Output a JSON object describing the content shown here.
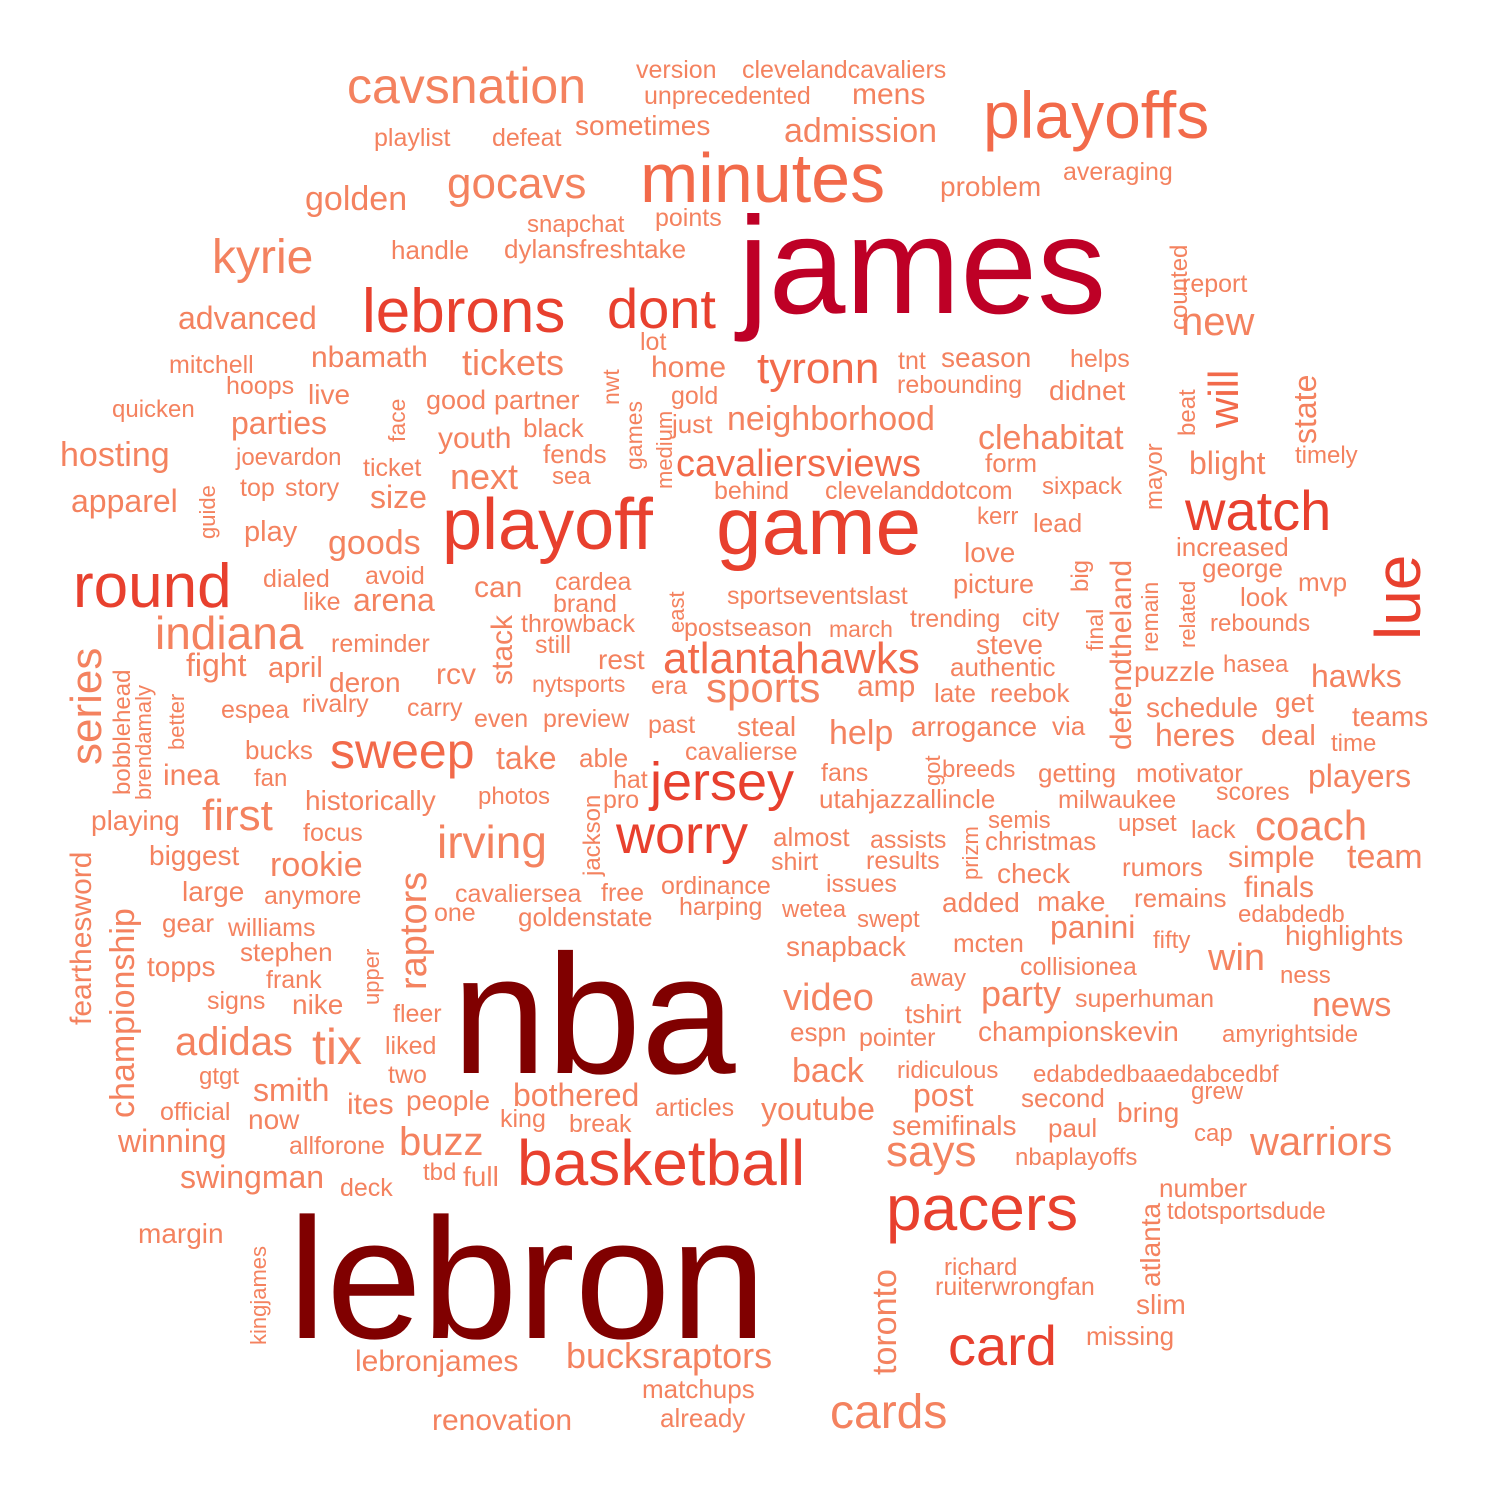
{
  "colors": {
    "tier1": "#800000",
    "tier2": "#BE0026",
    "tier3": "#E8402E",
    "tier4": "#F26A4A",
    "tier5": "#F4825F"
  },
  "words": [
    {
      "text": "james",
      "tier": 2
    },
    {
      "text": "nba",
      "tier": 1
    },
    {
      "text": "lebron",
      "tier": 1
    },
    {
      "text": "minutes",
      "tier": 4
    },
    {
      "text": "playoffs",
      "tier": 4
    },
    {
      "text": "cavsnation",
      "tier": 5
    },
    {
      "text": "version",
      "tier": 5
    },
    {
      "text": "clevelandcavaliers",
      "tier": 5
    },
    {
      "text": "unprecedented",
      "tier": 5
    },
    {
      "text": "mens",
      "tier": 5
    },
    {
      "text": "playlist",
      "tier": 5
    },
    {
      "text": "defeat",
      "tier": 5
    },
    {
      "text": "sometimes",
      "tier": 5
    },
    {
      "text": "admission",
      "tier": 5
    },
    {
      "text": "gocavs",
      "tier": 5
    },
    {
      "text": "golden",
      "tier": 5
    },
    {
      "text": "problem",
      "tier": 5
    },
    {
      "text": "averaging",
      "tier": 5
    },
    {
      "text": "snapchat",
      "tier": 5
    },
    {
      "text": "points",
      "tier": 5
    },
    {
      "text": "kyrie",
      "tier": 5
    },
    {
      "text": "handle",
      "tier": 5
    },
    {
      "text": "dylansfreshtake",
      "tier": 5
    },
    {
      "text": "lebrons",
      "tier": 3
    },
    {
      "text": "dont",
      "tier": 3
    },
    {
      "text": "counted",
      "tier": 5
    },
    {
      "text": "report",
      "tier": 5
    },
    {
      "text": "new",
      "tier": 5
    },
    {
      "text": "advanced",
      "tier": 5
    },
    {
      "text": "mitchell",
      "tier": 5
    },
    {
      "text": "nbamath",
      "tier": 5
    },
    {
      "text": "tickets",
      "tier": 5
    },
    {
      "text": "lot",
      "tier": 5
    },
    {
      "text": "home",
      "tier": 5
    },
    {
      "text": "tyronn",
      "tier": 4
    },
    {
      "text": "tnt",
      "tier": 5
    },
    {
      "text": "season",
      "tier": 5
    },
    {
      "text": "helps",
      "tier": 5
    },
    {
      "text": "hoops",
      "tier": 5
    },
    {
      "text": "live",
      "tier": 5
    },
    {
      "text": "good",
      "tier": 5
    },
    {
      "text": "partner",
      "tier": 5
    },
    {
      "text": "nwt",
      "tier": 5
    },
    {
      "text": "gold",
      "tier": 5
    },
    {
      "text": "rebounding",
      "tier": 5
    },
    {
      "text": "didnet",
      "tier": 5
    },
    {
      "text": "will",
      "tier": 4
    },
    {
      "text": "beat",
      "tier": 5
    },
    {
      "text": "state",
      "tier": 5
    },
    {
      "text": "quicken",
      "tier": 5
    },
    {
      "text": "parties",
      "tier": 5
    },
    {
      "text": "face",
      "tier": 5
    },
    {
      "text": "games",
      "tier": 5
    },
    {
      "text": "medium",
      "tier": 5
    },
    {
      "text": "just",
      "tier": 5
    },
    {
      "text": "neighborhood",
      "tier": 5
    },
    {
      "text": "clehabitat",
      "tier": 5
    },
    {
      "text": "hosting",
      "tier": 5
    },
    {
      "text": "joevardon",
      "tier": 5
    },
    {
      "text": "youth",
      "tier": 5
    },
    {
      "text": "black",
      "tier": 5
    },
    {
      "text": "fends",
      "tier": 5
    },
    {
      "text": "cavaliersviews",
      "tier": 4
    },
    {
      "text": "blight",
      "tier": 5
    },
    {
      "text": "timely",
      "tier": 5
    },
    {
      "text": "guide",
      "tier": 5
    },
    {
      "text": "ticket",
      "tier": 5
    },
    {
      "text": "sea",
      "tier": 5
    },
    {
      "text": "next",
      "tier": 5
    },
    {
      "text": "form",
      "tier": 5
    },
    {
      "text": "mayor",
      "tier": 5
    },
    {
      "text": "apparel",
      "tier": 5
    },
    {
      "text": "top",
      "tier": 5
    },
    {
      "text": "story",
      "tier": 5
    },
    {
      "text": "size",
      "tier": 5
    },
    {
      "text": "playoff",
      "tier": 3
    },
    {
      "text": "game",
      "tier": 3
    },
    {
      "text": "behind",
      "tier": 5
    },
    {
      "text": "clevelanddotcom",
      "tier": 5
    },
    {
      "text": "sixpack",
      "tier": 5
    },
    {
      "text": "watch",
      "tier": 3
    },
    {
      "text": "play",
      "tier": 5
    },
    {
      "text": "goods",
      "tier": 5
    },
    {
      "text": "kerr",
      "tier": 5
    },
    {
      "text": "lead",
      "tier": 5
    },
    {
      "text": "defendtheland",
      "tier": 5
    },
    {
      "text": "increased",
      "tier": 5
    },
    {
      "text": "lue",
      "tier": 3
    },
    {
      "text": "round",
      "tier": 3
    },
    {
      "text": "dialed",
      "tier": 5
    },
    {
      "text": "avoid",
      "tier": 5
    },
    {
      "text": "cardea",
      "tier": 5
    },
    {
      "text": "love",
      "tier": 5
    },
    {
      "text": "george",
      "tier": 5
    },
    {
      "text": "like",
      "tier": 5
    },
    {
      "text": "arena",
      "tier": 5
    },
    {
      "text": "can",
      "tier": 5
    },
    {
      "text": "brand",
      "tier": 5
    },
    {
      "text": "east",
      "tier": 5
    },
    {
      "text": "sportseventslast",
      "tier": 5
    },
    {
      "text": "picture",
      "tier": 5
    },
    {
      "text": "big",
      "tier": 5
    },
    {
      "text": "remain",
      "tier": 5
    },
    {
      "text": "related",
      "tier": 5
    },
    {
      "text": "mvp",
      "tier": 5
    },
    {
      "text": "look",
      "tier": 5
    },
    {
      "text": "series",
      "tier": 5
    },
    {
      "text": "indiana",
      "tier": 5
    },
    {
      "text": "throwback",
      "tier": 5
    },
    {
      "text": "stack",
      "tier": 5
    },
    {
      "text": "postseason",
      "tier": 5
    },
    {
      "text": "march",
      "tier": 5
    },
    {
      "text": "trending",
      "tier": 5
    },
    {
      "text": "city",
      "tier": 5
    },
    {
      "text": "final",
      "tier": 5
    },
    {
      "text": "rebounds",
      "tier": 5
    },
    {
      "text": "reminder",
      "tier": 5
    },
    {
      "text": "still",
      "tier": 5
    },
    {
      "text": "steve",
      "tier": 5
    },
    {
      "text": "bobblehead",
      "tier": 5
    },
    {
      "text": "fight",
      "tier": 5
    },
    {
      "text": "april",
      "tier": 5
    },
    {
      "text": "rest",
      "tier": 5
    },
    {
      "text": "atlantahawks",
      "tier": 4
    },
    {
      "text": "authentic",
      "tier": 5
    },
    {
      "text": "hasea",
      "tier": 5
    },
    {
      "text": "brendamaly",
      "tier": 5
    },
    {
      "text": "rcv",
      "tier": 5
    },
    {
      "text": "puzzle",
      "tier": 5
    },
    {
      "text": "hawks",
      "tier": 5
    },
    {
      "text": "deron",
      "tier": 5
    },
    {
      "text": "nytsports",
      "tier": 5
    },
    {
      "text": "era",
      "tier": 5
    },
    {
      "text": "sports",
      "tier": 5
    },
    {
      "text": "amp",
      "tier": 5
    },
    {
      "text": "late",
      "tier": 5
    },
    {
      "text": "reebok",
      "tier": 5
    },
    {
      "text": "better",
      "tier": 5
    },
    {
      "text": "espea",
      "tier": 5
    },
    {
      "text": "rivalry",
      "tier": 5
    },
    {
      "text": "carry",
      "tier": 5
    },
    {
      "text": "even",
      "tier": 5
    },
    {
      "text": "preview",
      "tier": 5
    },
    {
      "text": "past",
      "tier": 5
    },
    {
      "text": "get",
      "tier": 5
    },
    {
      "text": "schedule",
      "tier": 5
    },
    {
      "text": "teams",
      "tier": 5
    },
    {
      "text": "sweep",
      "tier": 4
    },
    {
      "text": "steal",
      "tier": 5
    },
    {
      "text": "help",
      "tier": 5
    },
    {
      "text": "arrogance",
      "tier": 5
    },
    {
      "text": "via",
      "tier": 5
    },
    {
      "text": "deal",
      "tier": 5
    },
    {
      "text": "bucks",
      "tier": 5
    },
    {
      "text": "take",
      "tier": 5
    },
    {
      "text": "able",
      "tier": 5
    },
    {
      "text": "cavalierse",
      "tier": 5
    },
    {
      "text": "got",
      "tier": 5
    },
    {
      "text": "heres",
      "tier": 5
    },
    {
      "text": "time",
      "tier": 5
    },
    {
      "text": "inea",
      "tier": 5
    },
    {
      "text": "fan",
      "tier": 5
    },
    {
      "text": "hat",
      "tier": 5
    },
    {
      "text": "jersey",
      "tier": 3
    },
    {
      "text": "fans",
      "tier": 5
    },
    {
      "text": "breeds",
      "tier": 5
    },
    {
      "text": "getting",
      "tier": 5
    },
    {
      "text": "motivator",
      "tier": 5
    },
    {
      "text": "players",
      "tier": 5
    },
    {
      "text": "fearthesword",
      "tier": 5
    },
    {
      "text": "first",
      "tier": 5
    },
    {
      "text": "historically",
      "tier": 5
    },
    {
      "text": "jackson",
      "tier": 5
    },
    {
      "text": "photos",
      "tier": 5
    },
    {
      "text": "pro",
      "tier": 5
    },
    {
      "text": "utahjazzallincle",
      "tier": 5
    },
    {
      "text": "milwaukee",
      "tier": 5
    },
    {
      "text": "scores",
      "tier": 5
    },
    {
      "text": "playing",
      "tier": 5
    },
    {
      "text": "focus",
      "tier": 5
    },
    {
      "text": "irving",
      "tier": 5
    },
    {
      "text": "worry",
      "tier": 3
    },
    {
      "text": "prizm",
      "tier": 5
    },
    {
      "text": "semis",
      "tier": 5
    },
    {
      "text": "upset",
      "tier": 5
    },
    {
      "text": "lack",
      "tier": 5
    },
    {
      "text": "coach",
      "tier": 5
    },
    {
      "text": "championship",
      "tier": 5
    },
    {
      "text": "biggest",
      "tier": 5
    },
    {
      "text": "almost",
      "tier": 5
    },
    {
      "text": "assists",
      "tier": 5
    },
    {
      "text": "christmas",
      "tier": 5
    },
    {
      "text": "raptors",
      "tier": 5
    },
    {
      "text": "rookie",
      "tier": 5
    },
    {
      "text": "shirt",
      "tier": 5
    },
    {
      "text": "results",
      "tier": 5
    },
    {
      "text": "rumors",
      "tier": 5
    },
    {
      "text": "simple",
      "tier": 5
    },
    {
      "text": "team",
      "tier": 5
    },
    {
      "text": "large",
      "tier": 5
    },
    {
      "text": "anymore",
      "tier": 5
    },
    {
      "text": "cavaliersea",
      "tier": 5
    },
    {
      "text": "free",
      "tier": 5
    },
    {
      "text": "ordinance",
      "tier": 5
    },
    {
      "text": "issues",
      "tier": 5
    },
    {
      "text": "check",
      "tier": 5
    },
    {
      "text": "finals",
      "tier": 5
    },
    {
      "text": "gear",
      "tier": 5
    },
    {
      "text": "williams",
      "tier": 5
    },
    {
      "text": "one",
      "tier": 5
    },
    {
      "text": "goldenstate",
      "tier": 5
    },
    {
      "text": "harping",
      "tier": 5
    },
    {
      "text": "wetea",
      "tier": 5
    },
    {
      "text": "swept",
      "tier": 5
    },
    {
      "text": "added",
      "tier": 5
    },
    {
      "text": "make",
      "tier": 5
    },
    {
      "text": "remains",
      "tier": 5
    },
    {
      "text": "edabdedb",
      "tier": 5
    },
    {
      "text": "stephen",
      "tier": 5
    },
    {
      "text": "upper",
      "tier": 5
    },
    {
      "text": "snapback",
      "tier": 5
    },
    {
      "text": "mcten",
      "tier": 5
    },
    {
      "text": "panini",
      "tier": 5
    },
    {
      "text": "fifty",
      "tier": 5
    },
    {
      "text": "highlights",
      "tier": 5
    },
    {
      "text": "topps",
      "tier": 5
    },
    {
      "text": "frank",
      "tier": 5
    },
    {
      "text": "away",
      "tier": 5
    },
    {
      "text": "collisionea",
      "tier": 5
    },
    {
      "text": "win",
      "tier": 5
    },
    {
      "text": "ness",
      "tier": 5
    },
    {
      "text": "signs",
      "tier": 5
    },
    {
      "text": "nike",
      "tier": 5
    },
    {
      "text": "video",
      "tier": 5
    },
    {
      "text": "party",
      "tier": 5
    },
    {
      "text": "superhuman",
      "tier": 5
    },
    {
      "text": "news",
      "tier": 5
    },
    {
      "text": "fleer",
      "tier": 5
    },
    {
      "text": "tshirt",
      "tier": 5
    },
    {
      "text": "adidas",
      "tier": 5
    },
    {
      "text": "tix",
      "tier": 5
    },
    {
      "text": "espn",
      "tier": 5
    },
    {
      "text": "pointer",
      "tier": 5
    },
    {
      "text": "championskevin",
      "tier": 5
    },
    {
      "text": "amyrightside",
      "tier": 5
    },
    {
      "text": "liked",
      "tier": 5
    },
    {
      "text": "gtgt",
      "tier": 5
    },
    {
      "text": "two",
      "tier": 5
    },
    {
      "text": "back",
      "tier": 5
    },
    {
      "text": "ridiculous",
      "tier": 5
    },
    {
      "text": "edabdedbaaedabcedbf",
      "tier": 5
    },
    {
      "text": "smith",
      "tier": 5
    },
    {
      "text": "post",
      "tier": 5
    },
    {
      "text": "grew",
      "tier": 5
    },
    {
      "text": "official",
      "tier": 5
    },
    {
      "text": "ites",
      "tier": 5
    },
    {
      "text": "people",
      "tier": 5
    },
    {
      "text": "bothered",
      "tier": 5
    },
    {
      "text": "articles",
      "tier": 5
    },
    {
      "text": "youtube",
      "tier": 5
    },
    {
      "text": "second",
      "tier": 5
    },
    {
      "text": "bring",
      "tier": 5
    },
    {
      "text": "now",
      "tier": 5
    },
    {
      "text": "king",
      "tier": 5
    },
    {
      "text": "break",
      "tier": 5
    },
    {
      "text": "semifinals",
      "tier": 5
    },
    {
      "text": "paul",
      "tier": 5
    },
    {
      "text": "cap",
      "tier": 5
    },
    {
      "text": "winning",
      "tier": 5
    },
    {
      "text": "allforone",
      "tier": 5
    },
    {
      "text": "buzz",
      "tier": 5
    },
    {
      "text": "warriors",
      "tier": 5
    },
    {
      "text": "says",
      "tier": 5
    },
    {
      "text": "nbaplayoffs",
      "tier": 5
    },
    {
      "text": "basketball",
      "tier": 3
    },
    {
      "text": "swingman",
      "tier": 5
    },
    {
      "text": "tbd",
      "tier": 5
    },
    {
      "text": "full",
      "tier": 5
    },
    {
      "text": "deck",
      "tier": 5
    },
    {
      "text": "pacers",
      "tier": 3
    },
    {
      "text": "atlanta",
      "tier": 5
    },
    {
      "text": "number",
      "tier": 5
    },
    {
      "text": "tdotsportsdude",
      "tier": 5
    },
    {
      "text": "margin",
      "tier": 5
    },
    {
      "text": "kingjames",
      "tier": 5
    },
    {
      "text": "card",
      "tier": 3
    },
    {
      "text": "toronto",
      "tier": 5
    },
    {
      "text": "richard",
      "tier": 5
    },
    {
      "text": "ruiterwrongfan",
      "tier": 5
    },
    {
      "text": "slim",
      "tier": 5
    },
    {
      "text": "missing",
      "tier": 5
    },
    {
      "text": "lebronjames",
      "tier": 5
    },
    {
      "text": "bucksraptors",
      "tier": 5
    },
    {
      "text": "matchups",
      "tier": 5
    },
    {
      "text": "already",
      "tier": 5
    },
    {
      "text": "renovation",
      "tier": 5
    },
    {
      "text": "cards",
      "tier": 5
    }
  ]
}
